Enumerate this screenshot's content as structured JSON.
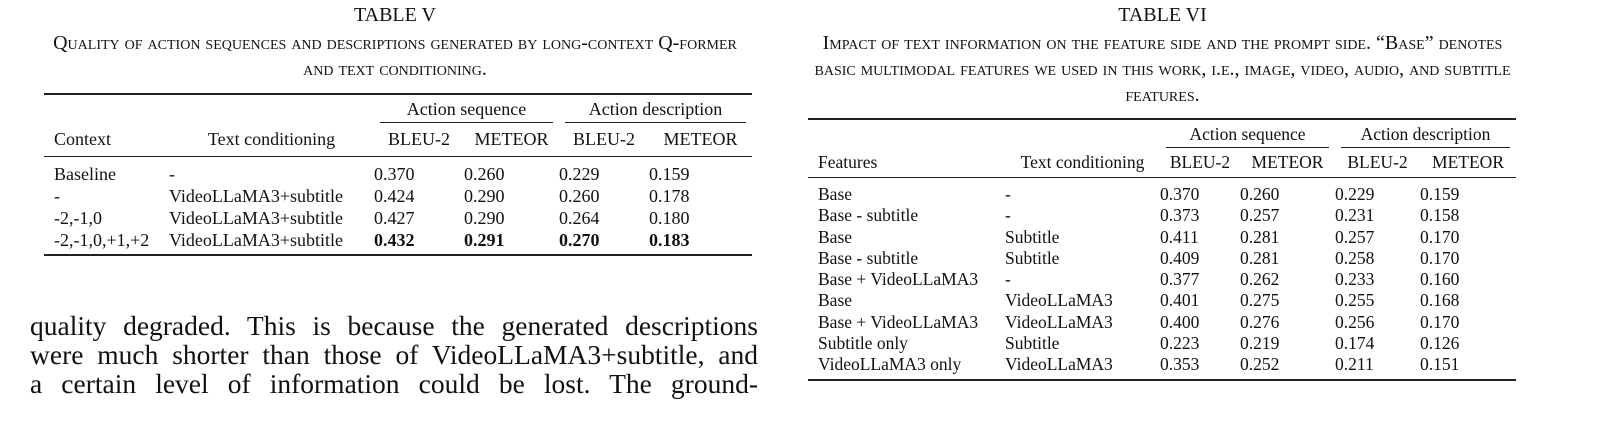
{
  "tables": [
    {
      "label": "TABLE V",
      "caption": "Quality of action sequences and descriptions generated by long-context Q-former and text conditioning.",
      "groups": [
        "Action sequence",
        "Action description"
      ],
      "columns": [
        "Context",
        "Text conditioning",
        "BLEU-2",
        "METEOR",
        "BLEU-2",
        "METEOR"
      ],
      "rows": [
        [
          "Baseline",
          "-",
          "0.370",
          "0.260",
          "0.229",
          "0.159"
        ],
        [
          "-",
          "VideoLLaMA3+subtitle",
          "0.424",
          "0.290",
          "0.260",
          "0.178"
        ],
        [
          "-2,-1,0",
          "VideoLLaMA3+subtitle",
          "0.427",
          "0.290",
          "0.264",
          "0.180"
        ],
        [
          "-2,-1,0,+1,+2",
          "VideoLLaMA3+subtitle",
          "0.432",
          "0.291",
          "0.270",
          "0.183"
        ]
      ]
    },
    {
      "label": "TABLE VI",
      "caption": "Impact of text information on the feature side and the prompt side. “Base” denotes basic multimodal features we used in this work, i.e., image, video, audio, and subtitle features.",
      "groups": [
        "Action sequence",
        "Action description"
      ],
      "columns": [
        "Features",
        "Text conditioning",
        "BLEU-2",
        "METEOR",
        "BLEU-2",
        "METEOR"
      ],
      "rows": [
        [
          "Base",
          "-",
          "0.370",
          "0.260",
          "0.229",
          "0.159"
        ],
        [
          "Base - subtitle",
          "-",
          "0.373",
          "0.257",
          "0.231",
          "0.158"
        ],
        [
          "Base",
          "Subtitle",
          "0.411",
          "0.281",
          "0.257",
          "0.170"
        ],
        [
          "Base - subtitle",
          "Subtitle",
          "0.409",
          "0.281",
          "0.258",
          "0.170"
        ],
        [
          "Base + VideoLLaMA3",
          "-",
          "0.377",
          "0.262",
          "0.233",
          "0.160"
        ],
        [
          "Base",
          "VideoLLaMA3",
          "0.401",
          "0.275",
          "0.255",
          "0.168"
        ],
        [
          "Base + VideoLLaMA3",
          "VideoLLaMA3",
          "0.400",
          "0.276",
          "0.256",
          "0.170"
        ],
        [
          "Subtitle only",
          "Subtitle",
          "0.223",
          "0.219",
          "0.174",
          "0.126"
        ],
        [
          "VideoLLaMA3 only",
          "VideoLLaMA3",
          "0.353",
          "0.252",
          "0.211",
          "0.151"
        ]
      ]
    }
  ],
  "body": {
    "lines": [
      "quality degraded. This is because the generated descriptions",
      "were much shorter than those of VideoLLaMA3+subtitle, and",
      "a certain level of information could be lost. The ground-"
    ]
  }
}
